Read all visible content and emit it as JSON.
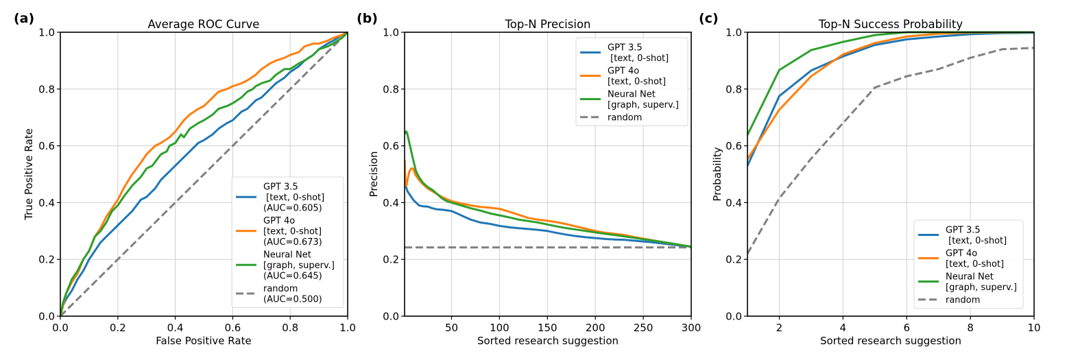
{
  "colors": {
    "gpt35": "#1f77b4",
    "gpt4o": "#ff7f0e",
    "neural_net": "#2ca02c",
    "random": "#808080"
  },
  "chart_data": [
    {
      "id": "a",
      "panel_label": "(a)",
      "type": "line",
      "title": "Average ROC Curve",
      "xlabel": "False Positive Rate",
      "ylabel": "True Positive Rate",
      "xlim": [
        0.0,
        1.0
      ],
      "ylim": [
        0.0,
        1.0
      ],
      "xticks": [
        "0.0",
        "0.2",
        "0.4",
        "0.6",
        "0.8",
        "1.0"
      ],
      "yticks": [
        "0.0",
        "0.2",
        "0.4",
        "0.6",
        "0.8",
        "1.0"
      ],
      "xtick_values": [
        0,
        0.2,
        0.4,
        0.6,
        0.8,
        1.0
      ],
      "ytick_values": [
        0,
        0.2,
        0.4,
        0.6,
        0.8,
        1.0
      ],
      "grid": true,
      "legend_position": "lower-right",
      "series": [
        {
          "key": "gpt35",
          "name": "GPT 3.5\n [text, 0-shot]\n(AUC=0.605)",
          "legend_lines": [
            "GPT 3.5",
            " [text, 0-shot]",
            "(AUC=0.605)"
          ],
          "dashed": false,
          "x": [
            0,
            0.01,
            0.02,
            0.04,
            0.06,
            0.08,
            0.1,
            0.12,
            0.14,
            0.16,
            0.18,
            0.2,
            0.22,
            0.25,
            0.28,
            0.3,
            0.33,
            0.35,
            0.38,
            0.4,
            0.43,
            0.45,
            0.48,
            0.5,
            0.53,
            0.55,
            0.58,
            0.6,
            0.63,
            0.65,
            0.68,
            0.7,
            0.73,
            0.75,
            0.78,
            0.8,
            0.83,
            0.85,
            0.88,
            0.9,
            0.93,
            0.95,
            0.98,
            1.0
          ],
          "y": [
            0,
            0.04,
            0.06,
            0.09,
            0.13,
            0.16,
            0.2,
            0.23,
            0.26,
            0.28,
            0.3,
            0.32,
            0.34,
            0.37,
            0.41,
            0.42,
            0.45,
            0.48,
            0.51,
            0.53,
            0.56,
            0.58,
            0.61,
            0.62,
            0.64,
            0.66,
            0.68,
            0.69,
            0.72,
            0.73,
            0.76,
            0.77,
            0.8,
            0.82,
            0.84,
            0.86,
            0.88,
            0.9,
            0.92,
            0.94,
            0.96,
            0.97,
            0.99,
            1.0
          ]
        },
        {
          "key": "gpt4o",
          "name": "GPT 4o\n[text, 0-shot]\n(AUC=0.673)",
          "legend_lines": [
            "GPT 4o",
            "[text, 0-shot]",
            "(AUC=0.673)"
          ],
          "dashed": false,
          "x": [
            0,
            0.01,
            0.02,
            0.04,
            0.06,
            0.08,
            0.1,
            0.12,
            0.14,
            0.16,
            0.18,
            0.2,
            0.22,
            0.25,
            0.28,
            0.3,
            0.33,
            0.35,
            0.38,
            0.4,
            0.43,
            0.45,
            0.48,
            0.5,
            0.53,
            0.55,
            0.58,
            0.6,
            0.63,
            0.65,
            0.68,
            0.7,
            0.73,
            0.75,
            0.78,
            0.8,
            0.83,
            0.85,
            0.88,
            0.9,
            0.93,
            0.95,
            0.98,
            1.0
          ],
          "y": [
            0,
            0.04,
            0.08,
            0.12,
            0.15,
            0.2,
            0.23,
            0.28,
            0.31,
            0.35,
            0.38,
            0.41,
            0.45,
            0.5,
            0.54,
            0.57,
            0.6,
            0.61,
            0.63,
            0.65,
            0.69,
            0.71,
            0.73,
            0.74,
            0.77,
            0.79,
            0.8,
            0.81,
            0.82,
            0.83,
            0.85,
            0.87,
            0.89,
            0.9,
            0.91,
            0.92,
            0.93,
            0.95,
            0.96,
            0.96,
            0.97,
            0.98,
            0.99,
            1.0
          ]
        },
        {
          "key": "neural_net",
          "name": "Neural Net\n[graph, superv.]\n(AUC=0.645)",
          "legend_lines": [
            "Neural Net",
            "[graph, superv.]",
            "(AUC=0.645)"
          ],
          "dashed": false,
          "x": [
            0,
            0.01,
            0.02,
            0.04,
            0.06,
            0.08,
            0.1,
            0.12,
            0.14,
            0.16,
            0.18,
            0.2,
            0.22,
            0.25,
            0.28,
            0.3,
            0.32,
            0.35,
            0.37,
            0.38,
            0.4,
            0.42,
            0.43,
            0.45,
            0.48,
            0.5,
            0.53,
            0.55,
            0.58,
            0.6,
            0.63,
            0.65,
            0.67,
            0.68,
            0.7,
            0.73,
            0.75,
            0.78,
            0.8,
            0.83,
            0.85,
            0.88,
            0.9,
            0.93,
            0.95,
            0.98,
            1.0
          ],
          "y": [
            0,
            0.05,
            0.08,
            0.13,
            0.16,
            0.2,
            0.23,
            0.28,
            0.3,
            0.33,
            0.37,
            0.39,
            0.42,
            0.46,
            0.49,
            0.52,
            0.53,
            0.57,
            0.58,
            0.6,
            0.61,
            0.64,
            0.63,
            0.66,
            0.68,
            0.69,
            0.71,
            0.73,
            0.74,
            0.75,
            0.77,
            0.79,
            0.8,
            0.81,
            0.82,
            0.83,
            0.85,
            0.87,
            0.87,
            0.89,
            0.9,
            0.92,
            0.94,
            0.95,
            0.96,
            0.98,
            1.0
          ]
        },
        {
          "key": "random",
          "name": "random\n(AUC=0.500)",
          "legend_lines": [
            "random",
            "(AUC=0.500)"
          ],
          "dashed": true,
          "x": [
            0,
            1.0
          ],
          "y": [
            0,
            1.0
          ]
        }
      ]
    },
    {
      "id": "b",
      "panel_label": "(b)",
      "type": "line",
      "title": "Top-N Precision",
      "xlabel": "Sorted research suggestion",
      "ylabel": "Precision",
      "xlim": [
        1,
        300
      ],
      "ylim": [
        0.0,
        1.0
      ],
      "xticks": [
        "50",
        "100",
        "150",
        "200",
        "250",
        "300"
      ],
      "xtick_values": [
        50,
        100,
        150,
        200,
        250,
        300
      ],
      "yticks": [
        "0.0",
        "0.2",
        "0.4",
        "0.6",
        "0.8",
        "1.0"
      ],
      "ytick_values": [
        0,
        0.2,
        0.4,
        0.6,
        0.8,
        1.0
      ],
      "grid": true,
      "legend_position": "upper-right",
      "series": [
        {
          "key": "gpt35",
          "name": "GPT 3.5\n [text, 0-shot]",
          "legend_lines": [
            "GPT 3.5",
            " [text, 0-shot]"
          ],
          "dashed": false,
          "x": [
            1,
            2,
            3,
            4,
            6,
            8,
            10,
            13,
            16,
            20,
            25,
            30,
            35,
            40,
            45,
            50,
            55,
            60,
            70,
            80,
            90,
            100,
            110,
            120,
            130,
            140,
            150,
            160,
            170,
            180,
            190,
            200,
            210,
            220,
            230,
            240,
            250,
            260,
            270,
            280,
            290,
            300
          ],
          "y": [
            0.55,
            0.46,
            0.45,
            0.44,
            0.43,
            0.42,
            0.41,
            0.4,
            0.39,
            0.387,
            0.386,
            0.38,
            0.376,
            0.375,
            0.373,
            0.37,
            0.363,
            0.355,
            0.34,
            0.33,
            0.325,
            0.318,
            0.313,
            0.31,
            0.307,
            0.304,
            0.3,
            0.293,
            0.287,
            0.282,
            0.278,
            0.275,
            0.272,
            0.27,
            0.269,
            0.266,
            0.263,
            0.26,
            0.256,
            0.252,
            0.248,
            0.245
          ]
        },
        {
          "key": "gpt4o",
          "name": "GPT 4o\n[text, 0-shot]",
          "legend_lines": [
            "GPT 4o",
            "[text, 0-shot]"
          ],
          "dashed": false,
          "x": [
            1,
            2,
            3,
            4,
            6,
            8,
            10,
            12,
            14,
            16,
            20,
            25,
            30,
            35,
            40,
            45,
            50,
            60,
            70,
            80,
            90,
            100,
            110,
            120,
            130,
            140,
            150,
            160,
            170,
            180,
            190,
            200,
            210,
            220,
            230,
            240,
            250,
            260,
            270,
            280,
            290,
            300
          ],
          "y": [
            0.55,
            0.46,
            0.46,
            0.48,
            0.51,
            0.52,
            0.52,
            0.5,
            0.49,
            0.48,
            0.465,
            0.45,
            0.44,
            0.43,
            0.42,
            0.412,
            0.405,
            0.397,
            0.39,
            0.385,
            0.382,
            0.378,
            0.368,
            0.357,
            0.346,
            0.34,
            0.336,
            0.331,
            0.324,
            0.316,
            0.308,
            0.3,
            0.294,
            0.29,
            0.286,
            0.279,
            0.273,
            0.267,
            0.261,
            0.255,
            0.25,
            0.245
          ]
        },
        {
          "key": "neural_net",
          "name": "Neural Net\n[graph, superv.]",
          "legend_lines": [
            "Neural Net",
            "[graph, superv.]"
          ],
          "dashed": false,
          "x": [
            1,
            2,
            3,
            4,
            6,
            8,
            10,
            13,
            16,
            20,
            25,
            30,
            35,
            40,
            45,
            50,
            60,
            70,
            80,
            90,
            100,
            110,
            120,
            130,
            140,
            150,
            160,
            170,
            180,
            190,
            200,
            210,
            220,
            230,
            240,
            250,
            260,
            270,
            280,
            290,
            300
          ],
          "y": [
            0.64,
            0.65,
            0.65,
            0.64,
            0.61,
            0.58,
            0.55,
            0.51,
            0.49,
            0.47,
            0.455,
            0.445,
            0.43,
            0.415,
            0.405,
            0.4,
            0.39,
            0.38,
            0.372,
            0.362,
            0.355,
            0.348,
            0.34,
            0.335,
            0.33,
            0.323,
            0.316,
            0.31,
            0.305,
            0.3,
            0.295,
            0.29,
            0.286,
            0.281,
            0.276,
            0.271,
            0.266,
            0.261,
            0.256,
            0.25,
            0.245
          ]
        },
        {
          "key": "random",
          "name": "random",
          "legend_lines": [
            "random"
          ],
          "dashed": true,
          "x": [
            1,
            300
          ],
          "y": [
            0.242,
            0.242
          ]
        }
      ]
    },
    {
      "id": "c",
      "panel_label": "(c)",
      "type": "line",
      "title": "Top-N Success Probability",
      "xlabel": "Sorted research suggestion",
      "ylabel": "Probability",
      "xlim": [
        1,
        10
      ],
      "ylim": [
        0.0,
        1.0
      ],
      "xticks": [
        "0",
        "2",
        "4",
        "6",
        "8",
        "10"
      ],
      "xtick_values": [
        0,
        2,
        4,
        6,
        8,
        10
      ],
      "yticks": [
        "0.0",
        "0.2",
        "0.4",
        "0.6",
        "0.8",
        "1.0"
      ],
      "ytick_values": [
        0,
        0.2,
        0.4,
        0.6,
        0.8,
        1.0
      ],
      "grid": true,
      "legend_position": "lower-right",
      "series": [
        {
          "key": "gpt35",
          "name": "GPT 3.5\n [text, 0-shot]",
          "legend_lines": [
            "GPT 3.5",
            " [text, 0-shot]"
          ],
          "dashed": false,
          "x": [
            1,
            2,
            3,
            4,
            5,
            6,
            7,
            8,
            9,
            10
          ],
          "y": [
            0.53,
            0.775,
            0.865,
            0.915,
            0.955,
            0.975,
            0.985,
            0.993,
            0.997,
            0.998
          ]
        },
        {
          "key": "gpt4o",
          "name": "GPT 4o\n[text, 0-shot]",
          "legend_lines": [
            "GPT 4o",
            "[text, 0-shot]"
          ],
          "dashed": false,
          "x": [
            1,
            2,
            3,
            4,
            5,
            6,
            7,
            8,
            9,
            10
          ],
          "y": [
            0.553,
            0.727,
            0.845,
            0.922,
            0.962,
            0.985,
            0.995,
            0.998,
            0.999,
            1.0
          ]
        },
        {
          "key": "neural_net",
          "name": "Neural Net\n[graph, superv.]",
          "legend_lines": [
            "Neural Net",
            "[graph, superv.]"
          ],
          "dashed": false,
          "x": [
            1,
            2,
            3,
            4,
            5,
            6,
            7,
            8,
            9,
            10
          ],
          "y": [
            0.638,
            0.867,
            0.937,
            0.966,
            0.99,
            1.0,
            1.0,
            1.0,
            1.0,
            1.0
          ]
        },
        {
          "key": "random",
          "name": "random",
          "legend_lines": [
            "random"
          ],
          "dashed": true,
          "x": [
            1,
            2,
            3,
            4,
            5,
            6,
            7,
            8,
            9,
            10
          ],
          "y": [
            0.22,
            0.415,
            0.555,
            0.68,
            0.805,
            0.845,
            0.87,
            0.91,
            0.94,
            0.945
          ]
        }
      ]
    }
  ]
}
